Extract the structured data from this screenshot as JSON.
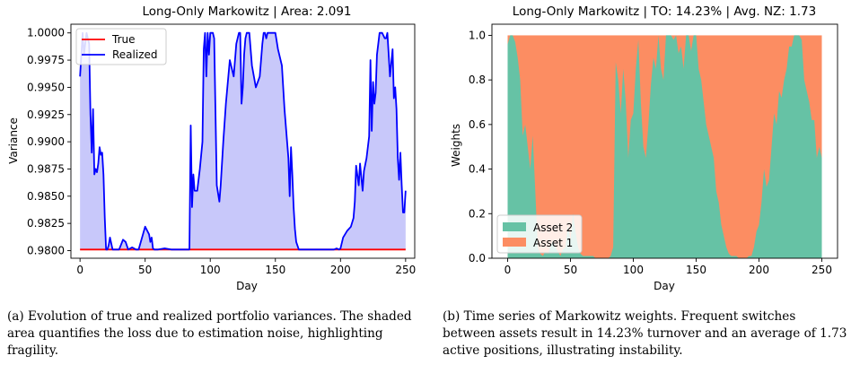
{
  "chart_data": [
    {
      "type": "line",
      "title": "Long-Only Markowitz | Area: 2.091",
      "xlabel": "Day",
      "ylabel": "Variance",
      "xlim": [
        -7,
        257
      ],
      "ylim": [
        0.9793,
        1.0008
      ],
      "x_ticks": [
        "0",
        "50",
        "100",
        "150",
        "200",
        "250"
      ],
      "y_ticks": [
        "0.9800",
        "0.9825",
        "0.9850",
        "0.9875",
        "0.9900",
        "0.9925",
        "0.9950",
        "0.9975",
        "1.0000"
      ],
      "legend_position": "top-left",
      "grid": false,
      "shaded_area_color": "#c8c8fa",
      "series": [
        {
          "name": "True",
          "color": "#ff0000",
          "x": [
            0,
            250
          ],
          "values": [
            0.9801,
            0.9801
          ]
        },
        {
          "name": "Realized",
          "color": "#0000ff",
          "x": [
            0,
            1,
            2,
            3,
            4,
            5,
            6,
            7,
            8,
            9,
            10,
            11,
            12,
            13,
            14,
            15,
            16,
            17,
            18,
            19,
            20,
            21,
            22,
            23,
            25,
            30,
            33,
            35,
            37,
            40,
            43,
            45,
            50,
            53,
            54,
            55,
            56,
            57,
            60,
            65,
            70,
            80,
            84,
            85,
            86,
            87,
            88,
            90,
            92,
            94,
            95,
            96,
            97,
            98,
            99,
            100,
            102,
            103,
            105,
            107,
            108,
            110,
            112,
            115,
            118,
            120,
            122,
            123,
            124,
            125,
            126,
            127,
            128,
            130,
            132,
            135,
            138,
            140,
            141,
            142,
            143,
            144,
            145,
            147,
            150,
            152,
            155,
            157,
            160,
            161,
            162,
            163,
            164,
            165,
            166,
            168,
            170,
            175,
            180,
            185,
            190,
            195,
            197,
            199,
            200,
            202,
            205,
            208,
            210,
            211,
            212,
            214,
            215,
            217,
            218,
            220,
            222,
            223,
            224,
            225,
            226,
            227,
            228,
            230,
            232,
            234,
            235,
            236,
            238,
            240,
            241,
            242,
            243,
            244,
            245,
            246,
            247,
            248,
            249,
            250
          ],
          "values": [
            0.996,
            0.998,
            1.0,
            0.998,
            0.999,
            1.0,
            0.9995,
            0.999,
            0.9925,
            0.989,
            0.993,
            0.987,
            0.9875,
            0.9872,
            0.988,
            0.9895,
            0.9888,
            0.989,
            0.987,
            0.983,
            0.9801,
            0.9801,
            0.9805,
            0.9812,
            0.9801,
            0.9801,
            0.981,
            0.9808,
            0.9801,
            0.9803,
            0.9801,
            0.9801,
            0.9822,
            0.9815,
            0.9808,
            0.9812,
            0.9802,
            0.9801,
            0.9801,
            0.9802,
            0.9801,
            0.9801,
            0.9801,
            0.9915,
            0.984,
            0.987,
            0.9855,
            0.9855,
            0.9875,
            0.99,
            0.9985,
            1.0,
            0.996,
            1.0,
            0.998,
            1.0,
            1.0,
            0.9995,
            0.986,
            0.9845,
            0.986,
            0.99,
            0.9935,
            0.9975,
            0.996,
            0.999,
            1.0,
            1.0,
            0.9935,
            0.995,
            0.998,
            0.9995,
            1.0,
            1.0,
            0.997,
            0.995,
            0.996,
            0.999,
            1.0,
            1.0,
            0.9995,
            1.0,
            1.0,
            1.0,
            1.0,
            0.9985,
            0.997,
            0.993,
            0.9885,
            0.985,
            0.9895,
            0.987,
            0.984,
            0.982,
            0.9808,
            0.9801,
            0.9801,
            0.9801,
            0.9801,
            0.9801,
            0.9801,
            0.9801,
            0.9802,
            0.9801,
            0.9802,
            0.9812,
            0.9818,
            0.9822,
            0.983,
            0.9845,
            0.9878,
            0.986,
            0.988,
            0.9855,
            0.9873,
            0.9885,
            0.9905,
            0.9975,
            0.991,
            0.9955,
            0.9935,
            0.9945,
            0.998,
            1.0,
            1.0,
            0.9995,
            0.9995,
            1.0,
            0.996,
            0.9985,
            0.994,
            0.995,
            0.993,
            0.9885,
            0.9865,
            0.989,
            0.986,
            0.9835,
            0.9835,
            0.9855
          ]
        }
      ]
    },
    {
      "type": "area",
      "title": "Long-Only Markowitz | TO: 14.23% | Avg. NZ: 1.73",
      "xlabel": "Day",
      "ylabel": "Weights",
      "xlim": [
        -12.5,
        262.5
      ],
      "ylim": [
        0.0,
        1.05
      ],
      "x_ticks": [
        "0",
        "50",
        "100",
        "150",
        "200",
        "250"
      ],
      "y_ticks": [
        "0.0",
        "0.2",
        "0.4",
        "0.6",
        "0.8",
        "1.0"
      ],
      "legend_position": "bottom-left",
      "grid": false,
      "stacked": true,
      "series": [
        {
          "name": "Asset 2",
          "color": "#66c2a5",
          "x": [
            0,
            2,
            4,
            6,
            8,
            10,
            12,
            14,
            16,
            18,
            20,
            22,
            24,
            26,
            28,
            30,
            32,
            34,
            36,
            38,
            40,
            42,
            44,
            46,
            48,
            50,
            52,
            54,
            56,
            58,
            60,
            62,
            64,
            66,
            68,
            70,
            72,
            74,
            76,
            78,
            80,
            82,
            84,
            86,
            88,
            90,
            92,
            94,
            96,
            98,
            100,
            102,
            104,
            106,
            108,
            110,
            112,
            114,
            116,
            118,
            120,
            122,
            124,
            126,
            128,
            130,
            132,
            134,
            136,
            138,
            140,
            142,
            144,
            146,
            148,
            150,
            152,
            154,
            156,
            158,
            160,
            162,
            164,
            166,
            168,
            170,
            172,
            174,
            176,
            178,
            180,
            182,
            184,
            186,
            188,
            190,
            192,
            194,
            196,
            198,
            200,
            202,
            204,
            206,
            208,
            210,
            212,
            214,
            216,
            218,
            220,
            222,
            224,
            226,
            228,
            230,
            232,
            234,
            236,
            238,
            240,
            242,
            244,
            246,
            248,
            250
          ],
          "values": [
            0.96,
            1.0,
            1.0,
            0.97,
            0.9,
            0.8,
            0.55,
            0.6,
            0.5,
            0.4,
            0.55,
            0.3,
            0.05,
            0.02,
            0.01,
            0.03,
            0.02,
            0.05,
            0.08,
            0.05,
            0.03,
            0.01,
            0.04,
            0.05,
            0.15,
            0.08,
            0.2,
            0.12,
            0.05,
            0.02,
            0.01,
            0.01,
            0.01,
            0.01,
            0.01,
            0.0,
            0.0,
            0.0,
            0.0,
            0.0,
            0.0,
            0.01,
            0.05,
            0.88,
            0.8,
            0.65,
            0.85,
            0.7,
            0.45,
            0.62,
            0.65,
            0.85,
            0.98,
            0.7,
            0.5,
            0.45,
            0.6,
            0.78,
            0.9,
            0.85,
            1.0,
            0.85,
            0.8,
            1.0,
            1.0,
            1.0,
            0.98,
            1.0,
            0.92,
            0.95,
            0.85,
            1.0,
            1.0,
            0.93,
            1.0,
            1.0,
            0.85,
            0.8,
            0.7,
            0.6,
            0.55,
            0.5,
            0.45,
            0.3,
            0.25,
            0.15,
            0.1,
            0.05,
            0.02,
            0.01,
            0.01,
            0.01,
            0.0,
            0.0,
            0.0,
            0.0,
            0.01,
            0.01,
            0.05,
            0.12,
            0.15,
            0.25,
            0.4,
            0.32,
            0.35,
            0.5,
            0.65,
            0.6,
            0.75,
            0.72,
            0.8,
            0.85,
            0.95,
            0.95,
            1.0,
            1.0,
            1.0,
            0.98,
            0.8,
            0.75,
            0.7,
            0.62,
            0.62,
            0.45,
            0.5,
            0.45
          ]
        },
        {
          "name": "Asset 1",
          "color": "#fc8d62"
        }
      ]
    }
  ],
  "captions": {
    "a": "(a) Evolution of true and realized portfolio variances. The shaded area quantifies the loss due to estimation noise, highlighting fragility.",
    "b": "(b) Time series of Markowitz weights. Frequent switches between assets result in 14.23% turnover and an average of 1.73 active positions, illustrating instability."
  }
}
